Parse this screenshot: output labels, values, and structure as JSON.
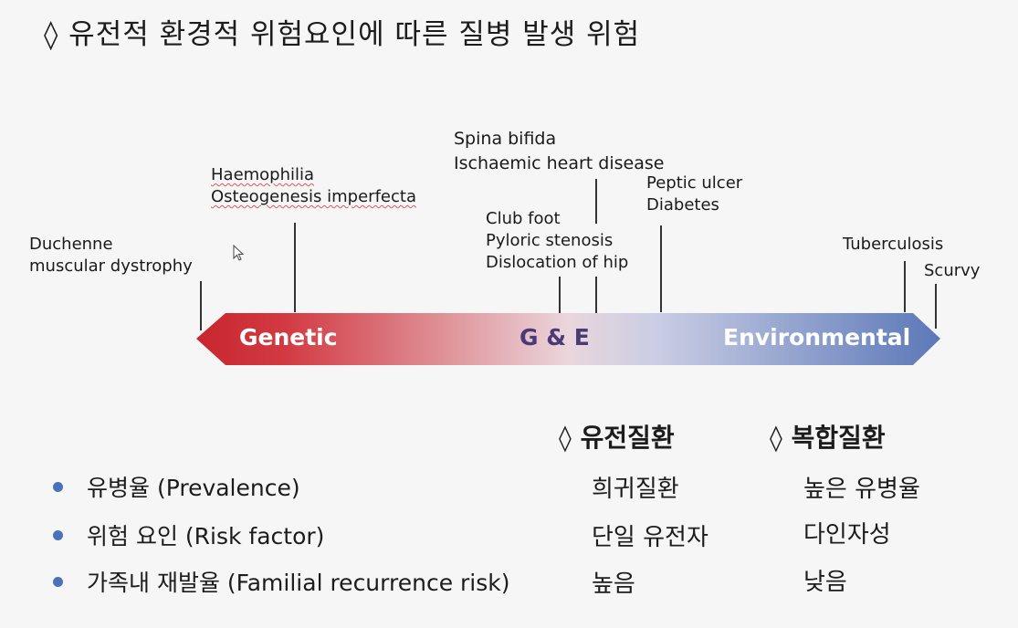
{
  "title": "◊ 유전적 환경적 위험요인에 따른 질병 발생 위험",
  "spectrum": {
    "left_label": "Genetic",
    "middle_label": "G & E",
    "right_label": "Environmental",
    "colors": {
      "genetic": "#c8262e",
      "middle": "#ead6dc",
      "environmental": "#5b78b8"
    }
  },
  "diseases": {
    "duchenne": [
      "Duchenne",
      "muscular dystrophy"
    ],
    "haemophilia": [
      "Haemophilia",
      "Osteogenesis imperfecta"
    ],
    "club_foot": [
      "Club foot",
      "Pyloric stenosis",
      "Dislocation of hip"
    ],
    "spina_bifida": [
      "Spina bifida",
      "Ischaemic heart disease"
    ],
    "peptic_ulcer": [
      "Peptic ulcer",
      "Diabetes"
    ],
    "tuberculosis": "Tuberculosis",
    "scurvy": "Scurvy"
  },
  "comparison": {
    "columns": [
      "◊ 유전질환",
      "◊ 복합질환"
    ],
    "rows": [
      {
        "label": "유병율 (Prevalence)",
        "genetic": "희귀질환",
        "complex": "높은 유병율"
      },
      {
        "label": "위험 요인 (Risk factor)",
        "genetic": "단일 유전자",
        "complex": "다인자성"
      },
      {
        "label": "가족내 재발율 (Familial recurrence risk)",
        "genetic": "높음",
        "complex": "낮음"
      }
    ]
  }
}
